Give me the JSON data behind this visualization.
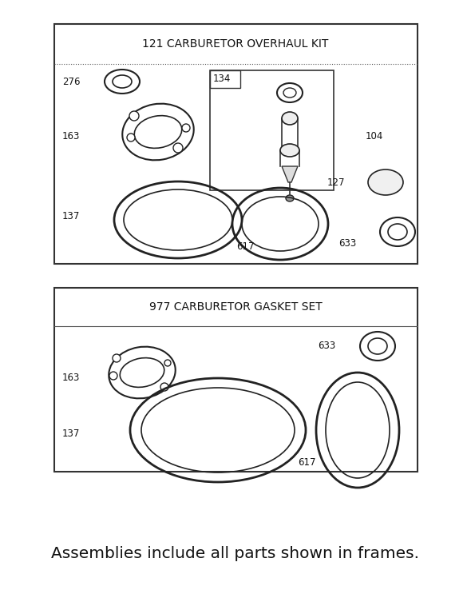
{
  "background_color": "#ffffff",
  "fig_width": 5.9,
  "fig_height": 7.43,
  "bottom_text": "Assemblies include all parts shown in frames.",
  "box1_title": "121 CARBURETOR OVERHAUL KIT",
  "box2_title": "977 CARBURETOR GASKET SET"
}
